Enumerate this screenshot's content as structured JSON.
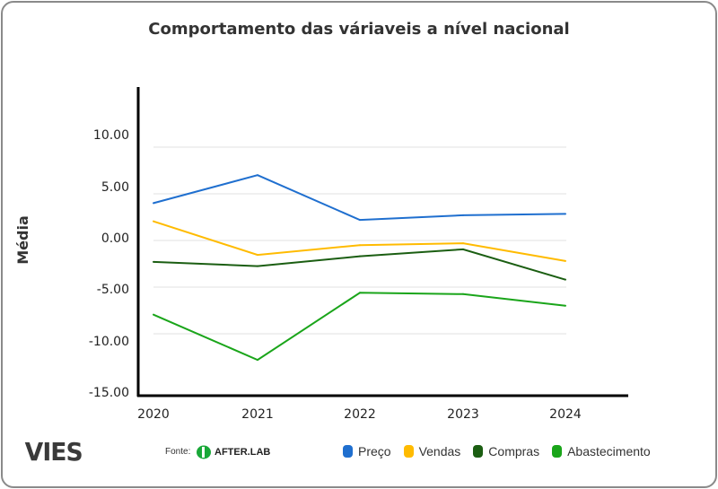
{
  "chart_data": {
    "type": "line",
    "title": "Comportamento das váriaveis a nível nacional",
    "xlabel": "",
    "ylabel": "Média",
    "x": [
      "2020",
      "2021",
      "2022",
      "2023",
      "2024"
    ],
    "yticks": [
      "10.00",
      "5.00",
      "0.00",
      "-5.00",
      "-10.00",
      "-15.00"
    ],
    "ylim": [
      -15,
      10
    ],
    "grid": true,
    "legend_position": "bottom-right",
    "series": [
      {
        "name": "Preço",
        "color": "#1f6fcf",
        "values": [
          4.0,
          7.0,
          2.2,
          2.7,
          2.85
        ]
      },
      {
        "name": "Vendas",
        "color": "#ffbb00",
        "values": [
          2.05,
          -1.55,
          -0.5,
          -0.3,
          -2.2
        ]
      },
      {
        "name": "Compras",
        "color": "#1b5e12",
        "values": [
          -2.3,
          -2.75,
          -1.7,
          -0.95,
          -4.2
        ]
      },
      {
        "name": "Abastecimento",
        "color": "#1aa51a",
        "values": [
          -7.95,
          -12.8,
          -5.6,
          -5.75,
          -7.0
        ]
      }
    ]
  },
  "footer": {
    "logo": "VIES",
    "source_label": "Fonte:",
    "source_name": "AFTER.LAB"
  }
}
